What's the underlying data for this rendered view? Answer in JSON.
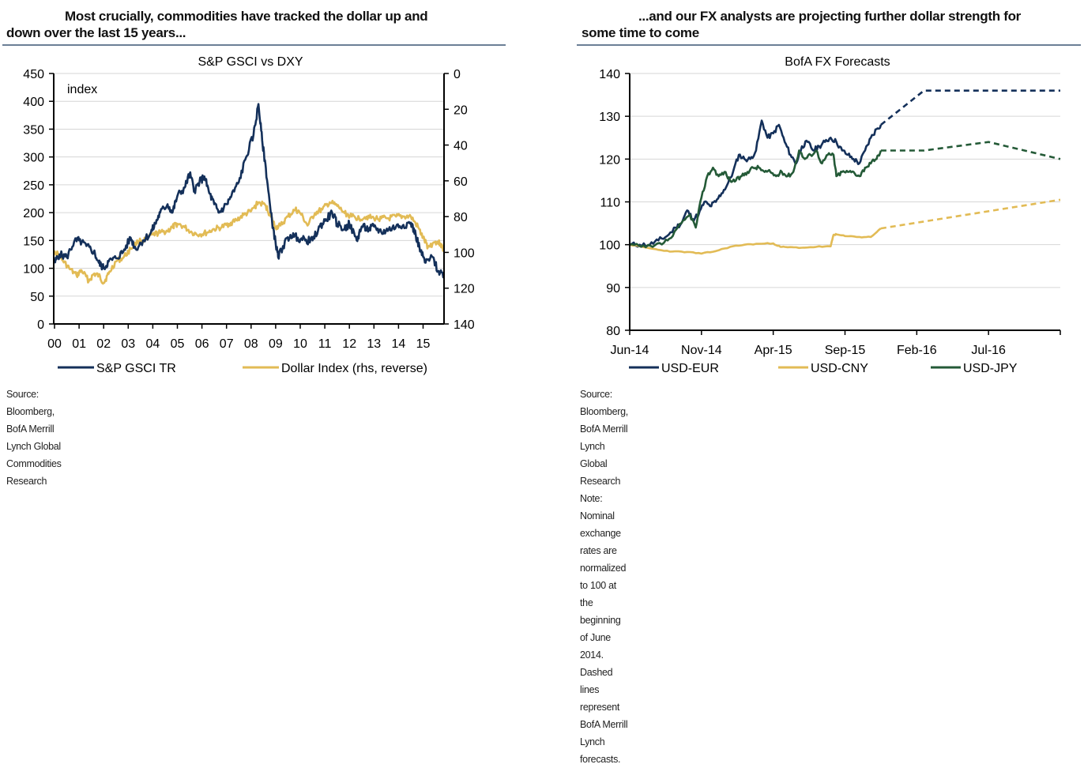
{
  "left_panel": {
    "headline_line1": "Most crucially, commodities have tracked the dollar up and",
    "headline_line2": "down over the last 15 years...",
    "source": "Source: Bloomberg, BofA Merrill Lynch Global Commodities Research"
  },
  "right_panel": {
    "headline_line1": "...and our FX analysts are projecting further dollar strength for",
    "headline_line2": "some time to come",
    "source": "Source: Bloomberg, BofA Merrill Lynch Global Research",
    "note_line1": "Note: Nominal exchange rates are normalized to 100 at the beginning of June 2014. Dashed lines",
    "note_line2": "represent BofA Merrill Lynch forecasts."
  },
  "colors": {
    "navy": "#14305a",
    "gold": "#e2bb55",
    "green": "#245a37",
    "grid": "#d6d6d6",
    "rule": "#6b7f96"
  },
  "chart_data": [
    {
      "type": "line",
      "title": "S&P GSCI vs DXY",
      "ylabel_inside": "index",
      "ylim": [
        0,
        450
      ],
      "y_ticks": [
        "0",
        "50",
        "100",
        "150",
        "200",
        "250",
        "300",
        "350",
        "400",
        "450"
      ],
      "y2lim": [
        140,
        0
      ],
      "y2_reversed": true,
      "y2_ticks": [
        "0",
        "20",
        "40",
        "60",
        "80",
        "100",
        "120",
        "140"
      ],
      "x_ticks": [
        "00",
        "01",
        "02",
        "03",
        "04",
        "05",
        "06",
        "07",
        "08",
        "09",
        "10",
        "11",
        "12",
        "13",
        "14",
        "15"
      ],
      "grid": true,
      "legend_position": "bottom",
      "series": [
        {
          "name": "S&P GSCI TR",
          "axis": "left",
          "color": "#14305a",
          "x": [
            0.0,
            0.2,
            0.5,
            0.8,
            1.0,
            1.3,
            1.6,
            1.8,
            2.0,
            2.2,
            2.5,
            2.8,
            3.1,
            3.3,
            3.6,
            3.9,
            4.1,
            4.3,
            4.6,
            4.8,
            5.0,
            5.3,
            5.5,
            5.7,
            5.9,
            6.1,
            6.3,
            6.5,
            6.7,
            7.0,
            7.2,
            7.5,
            7.8,
            8.1,
            8.3,
            8.45,
            8.6,
            8.8,
            9.0,
            9.1,
            9.3,
            9.6,
            9.9,
            10.2,
            10.5,
            10.8,
            11.0,
            11.3,
            11.5,
            11.8,
            12.0,
            12.3,
            12.5,
            12.8,
            13.0,
            13.3,
            13.6,
            13.9,
            14.2,
            14.5,
            14.7,
            14.9,
            15.1,
            15.4,
            15.6,
            15.85
          ],
          "y": [
            110,
            125,
            120,
            148,
            150,
            140,
            130,
            110,
            100,
            112,
            118,
            130,
            155,
            135,
            150,
            162,
            180,
            200,
            215,
            200,
            230,
            245,
            270,
            240,
            255,
            265,
            235,
            215,
            200,
            215,
            230,
            255,
            300,
            340,
            395,
            330,
            280,
            200,
            145,
            120,
            140,
            160,
            155,
            150,
            150,
            175,
            185,
            200,
            180,
            170,
            180,
            150,
            175,
            170,
            175,
            165,
            170,
            175,
            178,
            182,
            160,
            130,
            110,
            120,
            95,
            90
          ]
        },
        {
          "name": "Dollar Index (rhs, reverse)",
          "axis": "right",
          "color": "#e2bb55",
          "x": [
            0.0,
            0.3,
            0.6,
            0.9,
            1.1,
            1.4,
            1.6,
            1.8,
            2.0,
            2.2,
            2.5,
            2.8,
            3.1,
            3.4,
            3.7,
            4.0,
            4.3,
            4.6,
            4.8,
            5.0,
            5.3,
            5.6,
            5.9,
            6.2,
            6.5,
            6.8,
            7.1,
            7.4,
            7.7,
            8.0,
            8.3,
            8.6,
            8.8,
            9.0,
            9.2,
            9.5,
            9.8,
            10.0,
            10.3,
            10.6,
            10.9,
            11.2,
            11.5,
            11.8,
            12.1,
            12.4,
            12.7,
            13.0,
            13.3,
            13.6,
            13.9,
            14.2,
            14.5,
            14.8,
            15.0,
            15.2,
            15.5,
            15.7,
            15.85
          ],
          "y": [
            99,
            104,
            109,
            113,
            110,
            116,
            112,
            113,
            117,
            112,
            105,
            103,
            98,
            94,
            93,
            90,
            89,
            88,
            86,
            84,
            86,
            89,
            90,
            89,
            87,
            86,
            84,
            82,
            79,
            77,
            72,
            74,
            80,
            86,
            85,
            80,
            76,
            78,
            85,
            78,
            76,
            72,
            74,
            78,
            80,
            81,
            80,
            81,
            81,
            81,
            80,
            80,
            80,
            86,
            92,
            97,
            94,
            95,
            99
          ]
        }
      ]
    },
    {
      "type": "line",
      "title": "BofA FX Forecasts",
      "ylim": [
        80,
        140
      ],
      "y_ticks": [
        "80",
        "90",
        "100",
        "110",
        "120",
        "130",
        "140"
      ],
      "x_ticks": [
        "Jun-14",
        "Nov-14",
        "Apr-15",
        "Sep-15",
        "Feb-16",
        "Jul-16"
      ],
      "x_unit": "months since Jun-14",
      "xlim": [
        0,
        30
      ],
      "grid": true,
      "legend_position": "bottom",
      "series": [
        {
          "name": "USD-EUR",
          "color": "#14305a",
          "actual": {
            "x": [
              0,
              0.7,
              1.4,
              2.0,
              2.6,
              3.2,
              3.6,
              4.0,
              4.4,
              4.8,
              5.2,
              5.6,
              6.0,
              6.4,
              6.8,
              7.2,
              7.6,
              8.0,
              8.4,
              8.8,
              9.2,
              9.6,
              10.0,
              10.4,
              10.8,
              11.2,
              11.6,
              12.0,
              12.4,
              12.8,
              13.2,
              13.6,
              14.0,
              14.4,
              14.8,
              15.2,
              15.6,
              16.0,
              16.4,
              16.8,
              17.2,
              17.5
            ],
            "y": [
              100,
              100,
              100,
              101,
              102,
              104,
              105,
              108,
              106,
              107,
              110,
              109,
              110,
              112,
              114,
              117,
              121,
              120,
              120,
              122,
              129,
              125,
              126,
              128,
              124,
              121,
              119,
              123,
              124,
              122,
              123,
              124,
              125,
              124,
              122,
              121,
              120,
              119,
              122,
              125,
              127,
              128
            ]
          },
          "forecast": {
            "x": [
              17.5,
              20.5,
              30
            ],
            "y": [
              128,
              136,
              136
            ]
          }
        },
        {
          "name": "USD-CNY",
          "color": "#e2bb55",
          "actual": {
            "x": [
              0,
              1.0,
              2.0,
              3.0,
              4.0,
              5.0,
              6.0,
              7.0,
              8.0,
              9.0,
              10.0,
              10.5,
              11.0,
              12.0,
              13.0,
              14.0,
              14.2,
              14.4,
              15.0,
              16.0,
              16.8,
              17.5
            ],
            "y": [
              100,
              99.4,
              98.8,
              98.4,
              98.3,
              97.9,
              98.5,
              99.5,
              100.0,
              100.2,
              100.3,
              99.5,
              99.4,
              99.3,
              99.5,
              99.6,
              102.3,
              102.4,
              102.0,
              101.8,
              101.8,
              103.8
            ]
          },
          "forecast": {
            "x": [
              17.5,
              30
            ],
            "y": [
              103.8,
              110.5
            ]
          }
        },
        {
          "name": "USD-JPY",
          "color": "#245a37",
          "actual": {
            "x": [
              0,
              0.8,
              1.6,
              2.4,
              3.0,
              3.6,
              4.2,
              4.6,
              5.0,
              5.4,
              5.8,
              6.2,
              6.6,
              7.0,
              7.4,
              7.8,
              8.2,
              8.6,
              9.0,
              9.4,
              9.8,
              10.2,
              10.6,
              11.0,
              11.4,
              11.8,
              12.2,
              12.6,
              13.0,
              13.4,
              13.8,
              14.2,
              14.4,
              14.8,
              15.2,
              15.6,
              16.0,
              16.4,
              16.8,
              17.2,
              17.5
            ],
            "y": [
              100,
              99.5,
              99.5,
              100.5,
              102,
              105,
              107,
              104,
              111,
              116,
              118,
              116,
              117,
              115,
              115,
              116,
              117,
              118,
              118,
              117,
              117,
              116,
              117,
              116,
              117,
              122,
              120,
              121,
              122,
              119,
              121,
              121,
              116,
              117,
              117,
              117,
              116,
              118,
              119,
              120,
              122
            ]
          },
          "forecast": {
            "x": [
              17.5,
              20.5,
              25,
              30
            ],
            "y": [
              122,
              122,
              124,
              120
            ]
          }
        }
      ]
    }
  ]
}
